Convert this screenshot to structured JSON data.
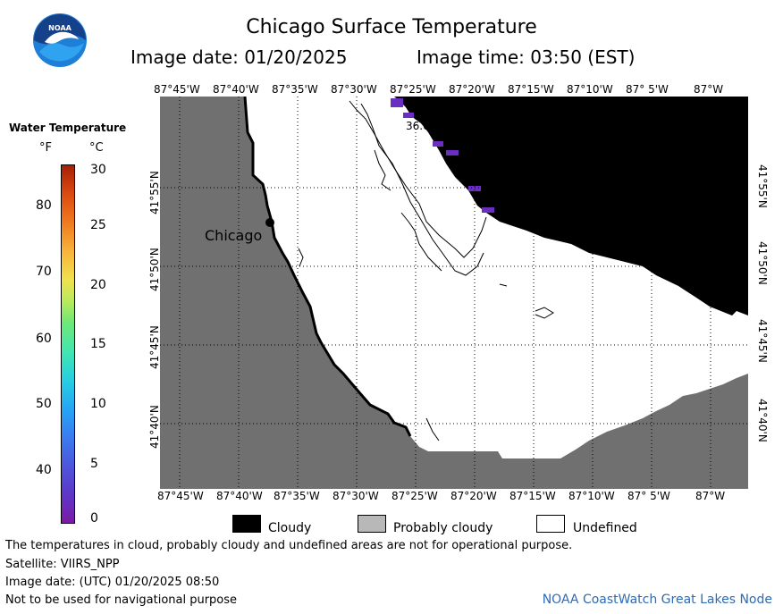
{
  "header": {
    "title": "Chicago Surface Temperature",
    "image_date": "Image date: 01/20/2025",
    "image_time": "Image time: 03:50 (EST)"
  },
  "legend": {
    "title": "Water Temperature",
    "unit_f": "°F",
    "unit_c": "°C",
    "f_ticks": [
      "80",
      "70",
      "60",
      "50",
      "40"
    ],
    "c_ticks": [
      "30",
      "25",
      "20",
      "15",
      "10",
      "5",
      "0"
    ]
  },
  "map": {
    "lon_labels": [
      "87°45'W",
      "87°40'W",
      "87°35'W",
      "87°30'W",
      "87°25'W",
      "87°20'W",
      "87°15'W",
      "87°10'W",
      "87° 5'W",
      "87°W"
    ],
    "lat_labels": [
      "41°55'N",
      "41°50'N",
      "41°45'N",
      "41°40'N"
    ],
    "city_label": "Chicago",
    "contour_label": "36.0",
    "colors": {
      "land": "#707070",
      "cloud": "#000000",
      "undefined": "#ffffff",
      "cold_water": "#6a2fc0"
    }
  },
  "key": {
    "cloudy": "Cloudy",
    "probably_cloudy": "Probably cloudy",
    "undefined": "Undefined"
  },
  "footer": {
    "disclaimer": "The temperatures in cloud, probably cloudy and undefined areas are not for operational purpose.",
    "satellite": "Satellite: VIIRS_NPP",
    "utc_date": "Image date: (UTC) 01/20/2025  08:50",
    "nav_warning": "Not to be used for navigational purpose",
    "node": "NOAA CoastWatch Great Lakes Node"
  }
}
